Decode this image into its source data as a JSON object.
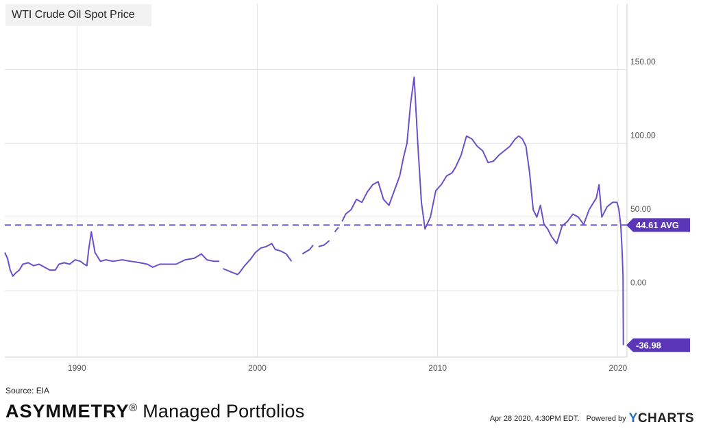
{
  "title": "WTI Crude Oil Spot Price",
  "source": "Source: EIA",
  "brand": {
    "name": "ASYMMETRY",
    "reg": "®",
    "rest": " Managed Portfolios"
  },
  "footer": {
    "timestamp": "Apr 28 2020, 4:30PM EDT.",
    "powered_by": "Powered by",
    "logo_y": "Y",
    "logo_rest": "CHARTS"
  },
  "colors": {
    "series": "#6a4fc8",
    "label_bg": "#5b37b7",
    "grid": "#e4e4e4",
    "axis_text": "#555555"
  },
  "chart_data": {
    "type": "line",
    "title": "WTI Crude Oil Spot Price",
    "x_ticks": [
      1990,
      2000,
      2010,
      2020
    ],
    "y_ticks": [
      "0.00",
      "50.00",
      "100.00",
      "150.00"
    ],
    "y_tick_values": [
      0,
      50,
      100,
      150
    ],
    "xlim": [
      1986.0,
      2020.5
    ],
    "ylim": [
      -45,
      195
    ],
    "grid": true,
    "average": {
      "value": 44.61,
      "label": "44.61 AVG"
    },
    "last": {
      "value": -36.98,
      "label": "-36.98"
    },
    "gaps": [
      [
        1997.9,
        1998.1
      ],
      [
        2001.9,
        2002.5
      ],
      [
        2003.1,
        2003.4
      ],
      [
        2004.0,
        2004.3
      ],
      [
        2004.5,
        2004.7
      ]
    ],
    "series": [
      {
        "x": [
          1986.0,
          1986.15,
          1986.3,
          1986.45,
          1986.6,
          1986.8,
          1987.0,
          1987.3,
          1987.6,
          1987.9,
          1988.2,
          1988.5,
          1988.8,
          1989.0,
          1989.3,
          1989.6,
          1989.9,
          1990.2,
          1990.4,
          1990.55,
          1990.65,
          1990.8,
          1991.0,
          1991.3,
          1991.6,
          1992.0,
          1992.5,
          1993.0,
          1993.5,
          1993.9,
          1994.2,
          1994.6,
          1995.0,
          1995.5,
          1996.0,
          1996.5,
          1996.9,
          1997.2,
          1997.6,
          1997.9,
          1998.1,
          1998.5,
          1998.9,
          1999.0,
          1999.3,
          1999.6,
          1999.9,
          2000.2,
          2000.5,
          2000.8,
          2001.0,
          2001.3,
          2001.6,
          2001.9,
          2002.5,
          2002.9,
          2003.1,
          2003.4,
          2003.7,
          2004.0,
          2004.3,
          2004.5,
          2004.7,
          2004.9,
          2005.2,
          2005.5,
          2005.8,
          2006.1,
          2006.4,
          2006.7,
          2007.0,
          2007.3,
          2007.6,
          2007.9,
          2008.1,
          2008.3,
          2008.5,
          2008.7,
          2008.9,
          2009.1,
          2009.3,
          2009.6,
          2009.9,
          2010.2,
          2010.5,
          2010.8,
          2011.0,
          2011.3,
          2011.6,
          2011.9,
          2012.2,
          2012.5,
          2012.8,
          2013.1,
          2013.4,
          2013.7,
          2014.0,
          2014.3,
          2014.5,
          2014.7,
          2014.9,
          2015.1,
          2015.3,
          2015.5,
          2015.7,
          2015.9,
          2016.1,
          2016.3,
          2016.6,
          2016.9,
          2017.2,
          2017.5,
          2017.8,
          2018.1,
          2018.4,
          2018.8,
          2018.95,
          2019.1,
          2019.4,
          2019.7,
          2019.95,
          2020.05,
          2020.15,
          2020.22,
          2020.28,
          2020.3
        ],
        "y": [
          26,
          22,
          14,
          10,
          12,
          14,
          18,
          19,
          17,
          18,
          16,
          14,
          14,
          18,
          19,
          18,
          21,
          20,
          18,
          17,
          28,
          40,
          26,
          20,
          21,
          20,
          21,
          20,
          19,
          18,
          16,
          18,
          18,
          18,
          21,
          22,
          25,
          21,
          20,
          20,
          15,
          13,
          11,
          12,
          17,
          21,
          26,
          29,
          30,
          32,
          28,
          27,
          25,
          20,
          25,
          28,
          31,
          30,
          31,
          34,
          40,
          43,
          47,
          52,
          55,
          62,
          60,
          67,
          72,
          74,
          62,
          58,
          68,
          78,
          90,
          100,
          127,
          145,
          100,
          60,
          42,
          50,
          68,
          72,
          78,
          80,
          84,
          92,
          105,
          103,
          98,
          95,
          87,
          88,
          92,
          95,
          98,
          103,
          105,
          103,
          98,
          80,
          55,
          50,
          58,
          45,
          42,
          37,
          32,
          44,
          47,
          52,
          50,
          45,
          55,
          63,
          72,
          50,
          57,
          60,
          60,
          55,
          45,
          30,
          10,
          -37
        ]
      }
    ]
  }
}
